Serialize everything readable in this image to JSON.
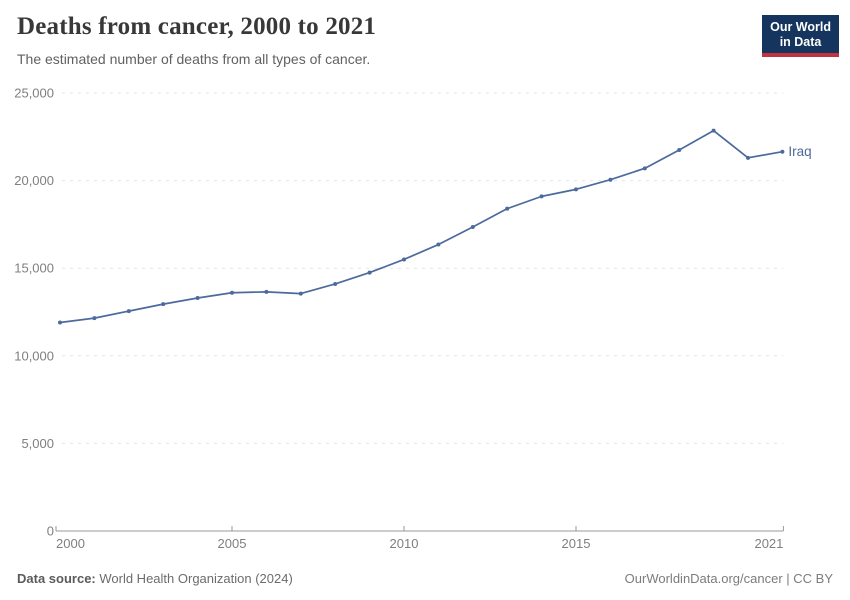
{
  "header": {
    "title": "Deaths from cancer, 2000 to 2021",
    "subtitle": "The estimated number of deaths from all types of cancer.",
    "logo": {
      "line1": "Our World",
      "line2": "in Data",
      "bg_color": "#15355e",
      "accent_color": "#c0343f"
    }
  },
  "chart_data": {
    "type": "line",
    "title": "Deaths from cancer, 2000 to 2021",
    "xlabel": "",
    "ylabel": "",
    "x": [
      2000,
      2001,
      2002,
      2003,
      2004,
      2005,
      2006,
      2007,
      2008,
      2009,
      2010,
      2011,
      2012,
      2013,
      2014,
      2015,
      2016,
      2017,
      2018,
      2019,
      2020,
      2021
    ],
    "series": [
      {
        "name": "Iraq",
        "color": "#4c6a9c",
        "values": [
          11900,
          12150,
          12550,
          12950,
          13300,
          13600,
          13650,
          13550,
          14100,
          14750,
          15500,
          16350,
          17350,
          18400,
          19100,
          19500,
          20050,
          20700,
          21750,
          22850,
          21300,
          21650
        ]
      }
    ],
    "xlim": [
      2000,
      2021
    ],
    "ylim": [
      0,
      25000
    ],
    "xticks": [
      2000,
      2005,
      2010,
      2015,
      2021
    ],
    "yticks": [
      0,
      5000,
      10000,
      15000,
      20000,
      25000
    ],
    "grid": "horizontal-dashed",
    "legend_position": "end-of-line-label",
    "end_label": "Iraq"
  },
  "footer": {
    "source_label": "Data source:",
    "source_text": " World Health Organization (2024)",
    "credit": "OurWorldinData.org/cancer | CC BY"
  },
  "colors": {
    "line": "#4c6a9c",
    "gridline": "#e5e5e5",
    "axis": "#9a9a9a",
    "tick_label": "#7f7f7f",
    "title_text": "#383838",
    "subtitle_text": "#616161"
  }
}
